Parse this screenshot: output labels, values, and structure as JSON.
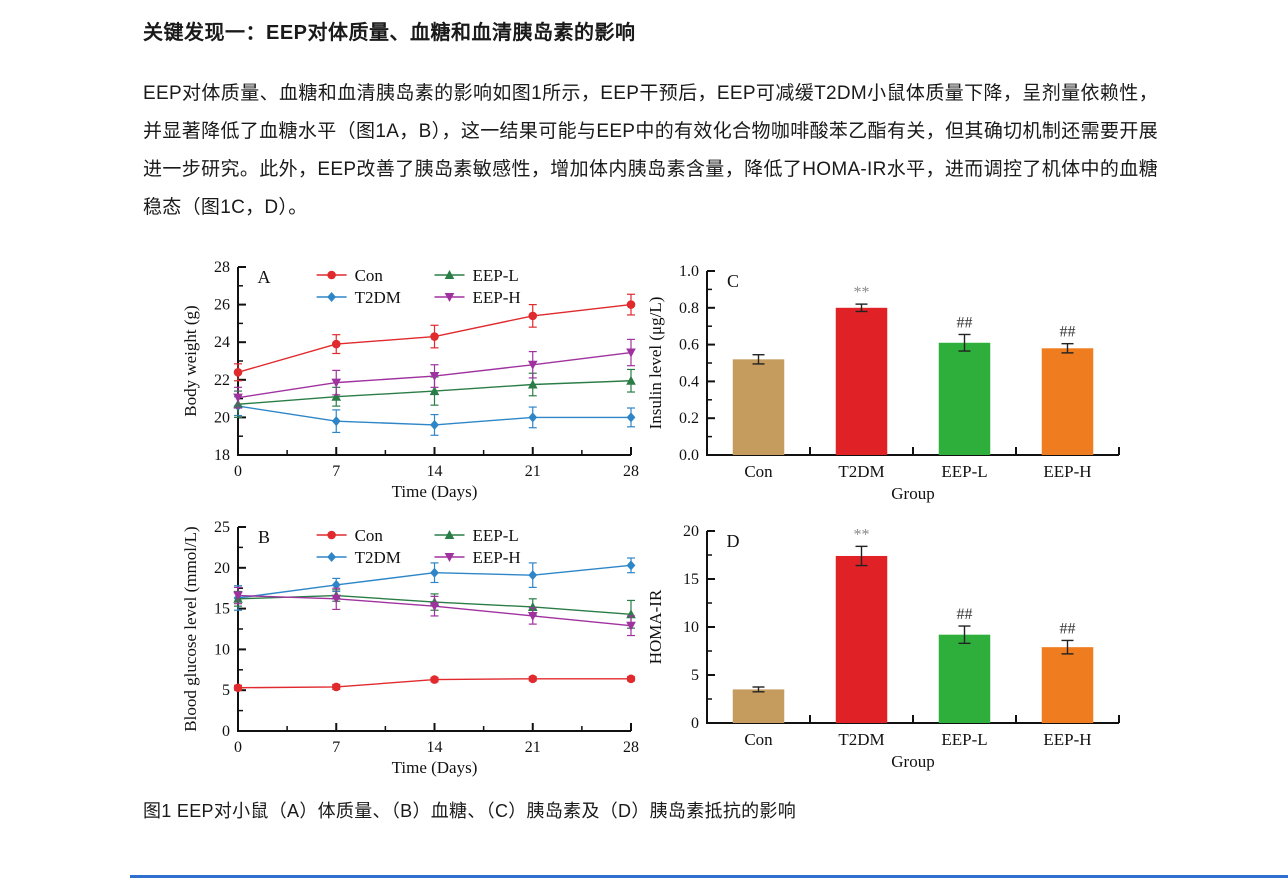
{
  "page": {
    "title": "关键发现一：EEP对体质量、血糖和血清胰岛素的影响",
    "paragraph": "EEP对体质量、血糖和血清胰岛素的影响如图1所示，EEP干预后，EEP可减缓T2DM小鼠体质量下降，呈剂量依赖性，并显著降低了血糖水平（图1A，B），这一结果可能与EEP中的有效化合物咖啡酸苯乙酯有关，但其确切机制还需要开展进一步研究。此外，EEP改善了胰岛素敏感性，增加体内胰岛素含量，降低了HOMA-IR水平，进而调控了机体中的血糖稳态（图1C，D）。",
    "caption": "图1  EEP对小鼠（A）体质量、（B）血糖、（C）胰岛素及（D）胰岛素抵抗的影响",
    "divider_color": "#2e6fd0"
  },
  "chart_data": [
    {
      "id": "chartA",
      "type": "line",
      "panel": "A",
      "xlabel": "Time (Days)",
      "ylabel": "Body weight (g)",
      "x": [
        0,
        7,
        14,
        21,
        28
      ],
      "xlim": [
        0,
        28
      ],
      "ylim": [
        18,
        28
      ],
      "yticks": [
        18,
        20,
        22,
        24,
        26,
        28
      ],
      "ytick_labels": [
        "18",
        "20",
        "22",
        "24",
        "26",
        "28"
      ],
      "xtick_labels": [
        "0",
        "7",
        "14",
        "21",
        "28"
      ],
      "legend_position": "top-inside",
      "series": [
        {
          "name": "Con",
          "color": "#e02a2d",
          "marker": "circle",
          "values": [
            22.4,
            23.9,
            24.3,
            25.4,
            26.0
          ],
          "errors": [
            0.45,
            0.5,
            0.6,
            0.6,
            0.55
          ]
        },
        {
          "name": "T2DM",
          "color": "#2e86c8",
          "marker": "diamond",
          "values": [
            20.6,
            19.8,
            19.6,
            20.0,
            20.0
          ],
          "errors": [
            0.5,
            0.6,
            0.55,
            0.55,
            0.5
          ]
        },
        {
          "name": "EEP-L",
          "color": "#2a7d46",
          "marker": "triangle-up",
          "values": [
            20.7,
            21.1,
            21.4,
            21.75,
            21.95
          ],
          "errors": [
            0.7,
            0.5,
            0.75,
            0.6,
            0.6
          ]
        },
        {
          "name": "EEP-H",
          "color": "#a032a0",
          "marker": "triangle-down",
          "values": [
            21.05,
            21.85,
            22.2,
            22.8,
            23.45
          ],
          "errors": [
            0.55,
            0.65,
            0.6,
            0.7,
            0.7
          ]
        }
      ]
    },
    {
      "id": "chartB",
      "type": "line",
      "panel": "B",
      "xlabel": "Time (Days)",
      "ylabel": "Blood glucose level (mmol/L)",
      "x": [
        0,
        7,
        14,
        21,
        28
      ],
      "xlim": [
        0,
        28
      ],
      "ylim": [
        0,
        25
      ],
      "yticks": [
        0,
        5,
        10,
        15,
        20,
        25
      ],
      "ytick_labels": [
        "0",
        "5",
        "10",
        "15",
        "20",
        "25"
      ],
      "xtick_labels": [
        "0",
        "7",
        "14",
        "21",
        "28"
      ],
      "legend_position": "top-inside",
      "series": [
        {
          "name": "Con",
          "color": "#e02a2d",
          "marker": "circle",
          "values": [
            5.3,
            5.4,
            6.3,
            6.4,
            6.4
          ],
          "errors": [
            0.3,
            0.3,
            0.25,
            0.25,
            0.25
          ]
        },
        {
          "name": "T2DM",
          "color": "#2e86c8",
          "marker": "diamond",
          "values": [
            16.3,
            17.9,
            19.4,
            19.1,
            20.3
          ],
          "errors": [
            1.5,
            0.8,
            1.2,
            1.5,
            0.9
          ]
        },
        {
          "name": "EEP-L",
          "color": "#2a7d46",
          "marker": "triangle-up",
          "values": [
            16.2,
            16.6,
            15.8,
            15.2,
            14.3
          ],
          "errors": [
            0.9,
            0.7,
            1.0,
            1.0,
            1.7
          ]
        },
        {
          "name": "EEP-H",
          "color": "#a032a0",
          "marker": "triangle-down",
          "values": [
            16.6,
            16.2,
            15.3,
            14.1,
            12.9
          ],
          "errors": [
            1.0,
            1.3,
            1.2,
            1.0,
            1.2
          ]
        }
      ]
    },
    {
      "id": "chartC",
      "type": "bar",
      "panel": "C",
      "xlabel": "Group",
      "ylabel": "Insulin level (μg/L)",
      "categories": [
        "Con",
        "T2DM",
        "EEP-L",
        "EEP-H"
      ],
      "values": [
        0.52,
        0.8,
        0.61,
        0.58
      ],
      "errors": [
        0.025,
        0.02,
        0.045,
        0.025
      ],
      "bar_colors": [
        "#c69c5e",
        "#e02226",
        "#2eaf3c",
        "#ef7d1f"
      ],
      "annotations": [
        "",
        "**",
        "##",
        "##"
      ],
      "ylim": [
        0,
        1.0
      ],
      "yticks": [
        0,
        0.2,
        0.4,
        0.6,
        0.8,
        1.0
      ],
      "ytick_labels": [
        "0.0",
        "0.2",
        "0.4",
        "0.6",
        "0.8",
        "1.0"
      ]
    },
    {
      "id": "chartD",
      "type": "bar",
      "panel": "D",
      "xlabel": "Group",
      "ylabel": "HOMA-IR",
      "categories": [
        "Con",
        "T2DM",
        "EEP-L",
        "EEP-H"
      ],
      "values": [
        3.5,
        17.4,
        9.2,
        7.9
      ],
      "errors": [
        0.25,
        1.0,
        0.9,
        0.7
      ],
      "bar_colors": [
        "#c69c5e",
        "#e02226",
        "#2eaf3c",
        "#ef7d1f"
      ],
      "annotations": [
        "",
        "**",
        "##",
        "##"
      ],
      "ylim": [
        0,
        20
      ],
      "yticks": [
        0,
        5,
        10,
        15,
        20
      ],
      "ytick_labels": [
        "0",
        "5",
        "10",
        "15",
        "20"
      ]
    }
  ]
}
